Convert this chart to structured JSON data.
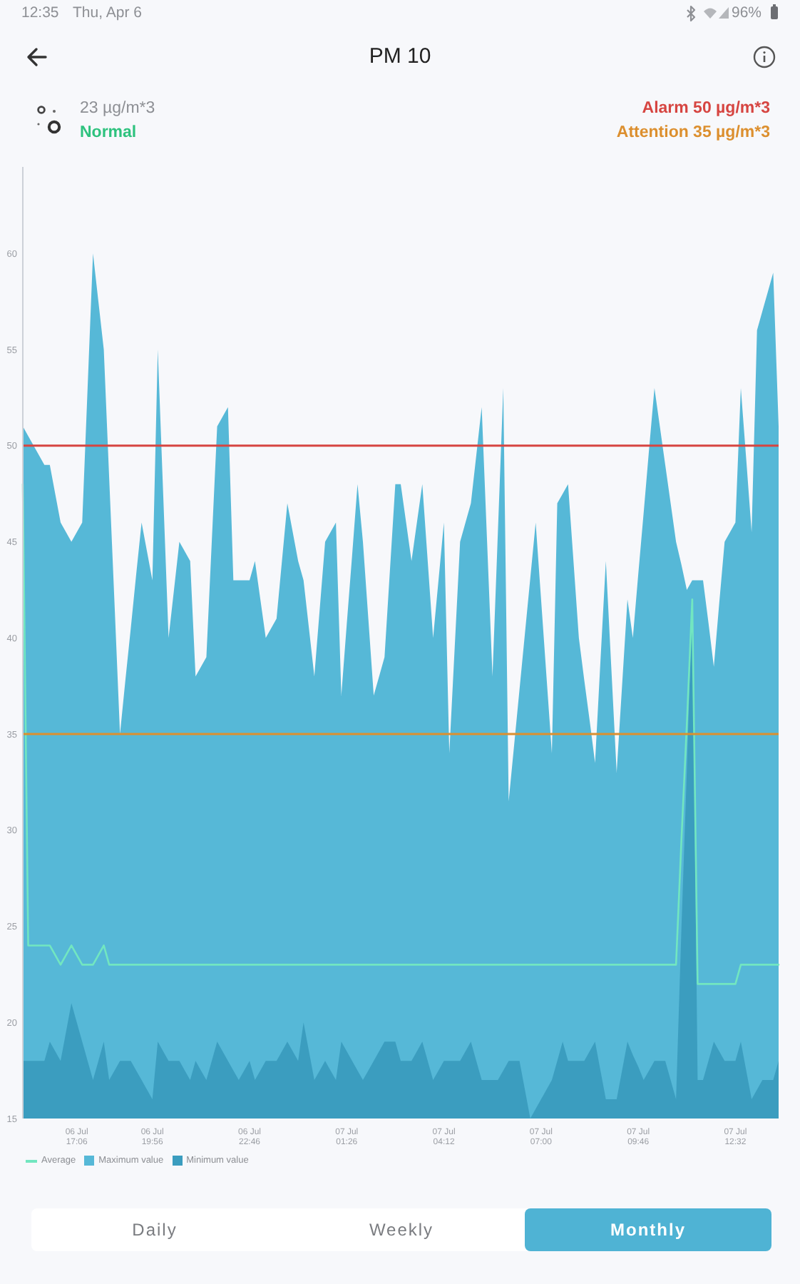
{
  "chart_data": {
    "type": "area",
    "title": "PM 10",
    "subtitle": "23 µg/m*3",
    "annotations": [
      "12:35",
      "Thu, Apr 6",
      "96%",
      "Normal",
      "Daily",
      "Weekly",
      "Monthly"
    ],
    "categories": [
      null,
      null,
      null,
      null,
      null,
      null,
      null,
      null,
      null,
      null,
      "06 Jul 17:06",
      null,
      null,
      null,
      null,
      null,
      null,
      null,
      null,
      null,
      null,
      null,
      null,
      null,
      "06 Jul 19:56",
      null,
      null,
      null,
      null,
      null,
      null,
      null,
      null,
      null,
      null,
      null,
      null,
      null,
      null,
      null,
      null,
      null,
      "06 Jul 22:46",
      null,
      null,
      null,
      null,
      null,
      null,
      null,
      null,
      null,
      null,
      null,
      null,
      null,
      null,
      null,
      null,
      null,
      "07 Jul 01:26",
      null,
      null,
      null,
      null,
      null,
      null,
      null,
      null,
      null,
      null,
      null,
      null,
      null,
      null,
      null,
      null,
      null,
      "07 Jul 04:12",
      null,
      null,
      null,
      null,
      null,
      null,
      null,
      null,
      null,
      null,
      null,
      null,
      null,
      null,
      null,
      null,
      null,
      "07 Jul 07:00",
      null,
      null,
      null,
      null,
      null,
      null,
      null,
      null,
      null,
      null,
      null,
      null,
      null,
      null,
      null,
      null,
      null,
      "07 Jul 09:46",
      null,
      null,
      null,
      null,
      null,
      null,
      null,
      null,
      null,
      null,
      null,
      null,
      null,
      null,
      null,
      null,
      null,
      "07 Jul 12:32",
      null,
      null,
      null,
      null,
      null,
      null,
      null,
      null
    ],
    "series": [
      {
        "name": "Average",
        "type": "line",
        "color": "#72e6c0",
        "values": [
          48,
          24,
          24,
          24,
          24,
          24,
          23.5,
          23,
          23.5,
          24,
          23.5,
          23,
          23,
          23,
          23.5,
          24,
          23,
          23,
          23,
          23,
          23,
          23,
          23,
          23,
          23,
          23,
          23,
          23,
          23,
          23,
          23,
          23,
          23,
          23,
          23,
          23,
          23,
          23,
          23,
          23,
          23,
          23,
          23,
          23,
          23,
          23,
          23,
          23,
          23,
          23,
          23,
          23,
          23,
          23,
          23,
          23,
          23,
          23,
          23,
          23,
          23,
          23,
          23,
          23,
          23,
          23,
          23,
          23,
          23,
          23,
          23,
          23,
          23,
          23,
          23,
          23,
          23,
          23,
          23,
          23,
          23,
          23,
          23,
          23,
          23,
          23,
          23,
          23,
          23,
          23,
          23,
          23,
          23,
          23,
          23,
          23,
          23,
          23,
          23,
          23,
          23,
          23,
          23,
          23,
          23,
          23,
          23,
          23,
          23,
          23,
          23,
          23,
          23,
          23,
          23,
          23,
          23,
          23,
          23,
          23,
          23,
          23,
          29.5,
          35.5,
          42,
          22,
          22,
          22,
          22,
          22,
          22,
          22,
          22,
          23,
          23,
          23,
          23,
          23,
          23,
          23,
          23
        ]
      },
      {
        "name": "Maximum value",
        "color": "#56b8d7",
        "values": [
          51,
          50.5,
          50,
          49.5,
          49,
          49,
          47.5,
          46,
          45.5,
          45,
          45.5,
          46,
          53,
          60,
          57.5,
          55,
          48.3,
          41.7,
          35,
          37.8,
          40.5,
          43.3,
          46,
          44.5,
          43,
          55,
          47.5,
          40,
          42.5,
          45,
          44.5,
          44,
          38,
          38.5,
          39,
          45,
          51,
          51.5,
          52,
          43,
          43,
          43,
          43,
          44,
          42,
          40,
          40.5,
          41,
          44,
          47,
          45.5,
          44,
          43,
          40.5,
          38,
          41.5,
          45,
          45.5,
          46,
          37,
          40.7,
          44.3,
          48,
          45,
          41,
          37,
          38,
          39,
          43.5,
          48,
          48,
          46,
          44,
          46,
          48,
          44,
          40,
          43,
          46,
          34,
          39.5,
          45,
          46,
          47,
          49.5,
          52,
          45,
          38,
          45.5,
          53,
          31.5,
          34.4,
          37.3,
          40.2,
          43.1,
          46,
          42,
          38,
          34,
          47,
          47.5,
          48,
          44,
          40,
          37.8,
          35.7,
          33.5,
          38.8,
          44,
          38.5,
          33,
          37.5,
          42,
          40,
          43.3,
          46.5,
          49.8,
          53,
          51,
          49,
          47,
          45,
          43.8,
          42.5,
          43,
          43,
          43,
          40.8,
          38.5,
          41.8,
          45,
          45.5,
          46,
          53,
          49.3,
          45.5,
          56,
          57,
          58,
          59,
          51
        ]
      },
      {
        "name": "Minimum value",
        "color": "#3b9dbf",
        "values": [
          18,
          18,
          18,
          18,
          18,
          19,
          18.5,
          18,
          19.5,
          21,
          20,
          19,
          18,
          17,
          18,
          19,
          17,
          17.5,
          18,
          18,
          18,
          17.5,
          17,
          16.5,
          16,
          19,
          18.5,
          18,
          18,
          18,
          17.5,
          17,
          18,
          17.5,
          17,
          18,
          19,
          18.5,
          18,
          17.5,
          17,
          17.5,
          18,
          17,
          17.5,
          18,
          18,
          18,
          18.5,
          19,
          18.5,
          18,
          20,
          18.5,
          17,
          17.5,
          18,
          17.5,
          17,
          19,
          18.5,
          18,
          17.5,
          17,
          17.5,
          18,
          18.5,
          19,
          19,
          19,
          18,
          18,
          18,
          18.5,
          19,
          18,
          17,
          17.5,
          18,
          18,
          18,
          18,
          18.5,
          19,
          18,
          17,
          17,
          17,
          17,
          17.5,
          18,
          18,
          18,
          16.5,
          15,
          15.5,
          16,
          16.5,
          17,
          18,
          19,
          18,
          18,
          18,
          18,
          18.5,
          19,
          17.5,
          16,
          16,
          16,
          17.5,
          19,
          18.3,
          17.7,
          17,
          17.5,
          18,
          18,
          18,
          17,
          16,
          24.9,
          33.1,
          42,
          17,
          17,
          18,
          19,
          18.5,
          18,
          18,
          18,
          19,
          17.5,
          16,
          16.5,
          17,
          17,
          17,
          18
        ]
      }
    ],
    "ylim": [
      15,
      64.5
    ],
    "yticks": [
      15,
      20,
      25,
      30,
      35,
      40,
      45,
      50,
      55,
      60
    ],
    "ref_lines": [
      {
        "axis": "y",
        "value": 50,
        "label": "Alarm 50 µg/m*3",
        "color": "#d64541"
      },
      {
        "axis": "y",
        "value": 35,
        "label": "Attention 35 µg/m*3",
        "color": "#dc8f2e"
      }
    ],
    "legend": "bottom left",
    "marker": "none"
  }
}
